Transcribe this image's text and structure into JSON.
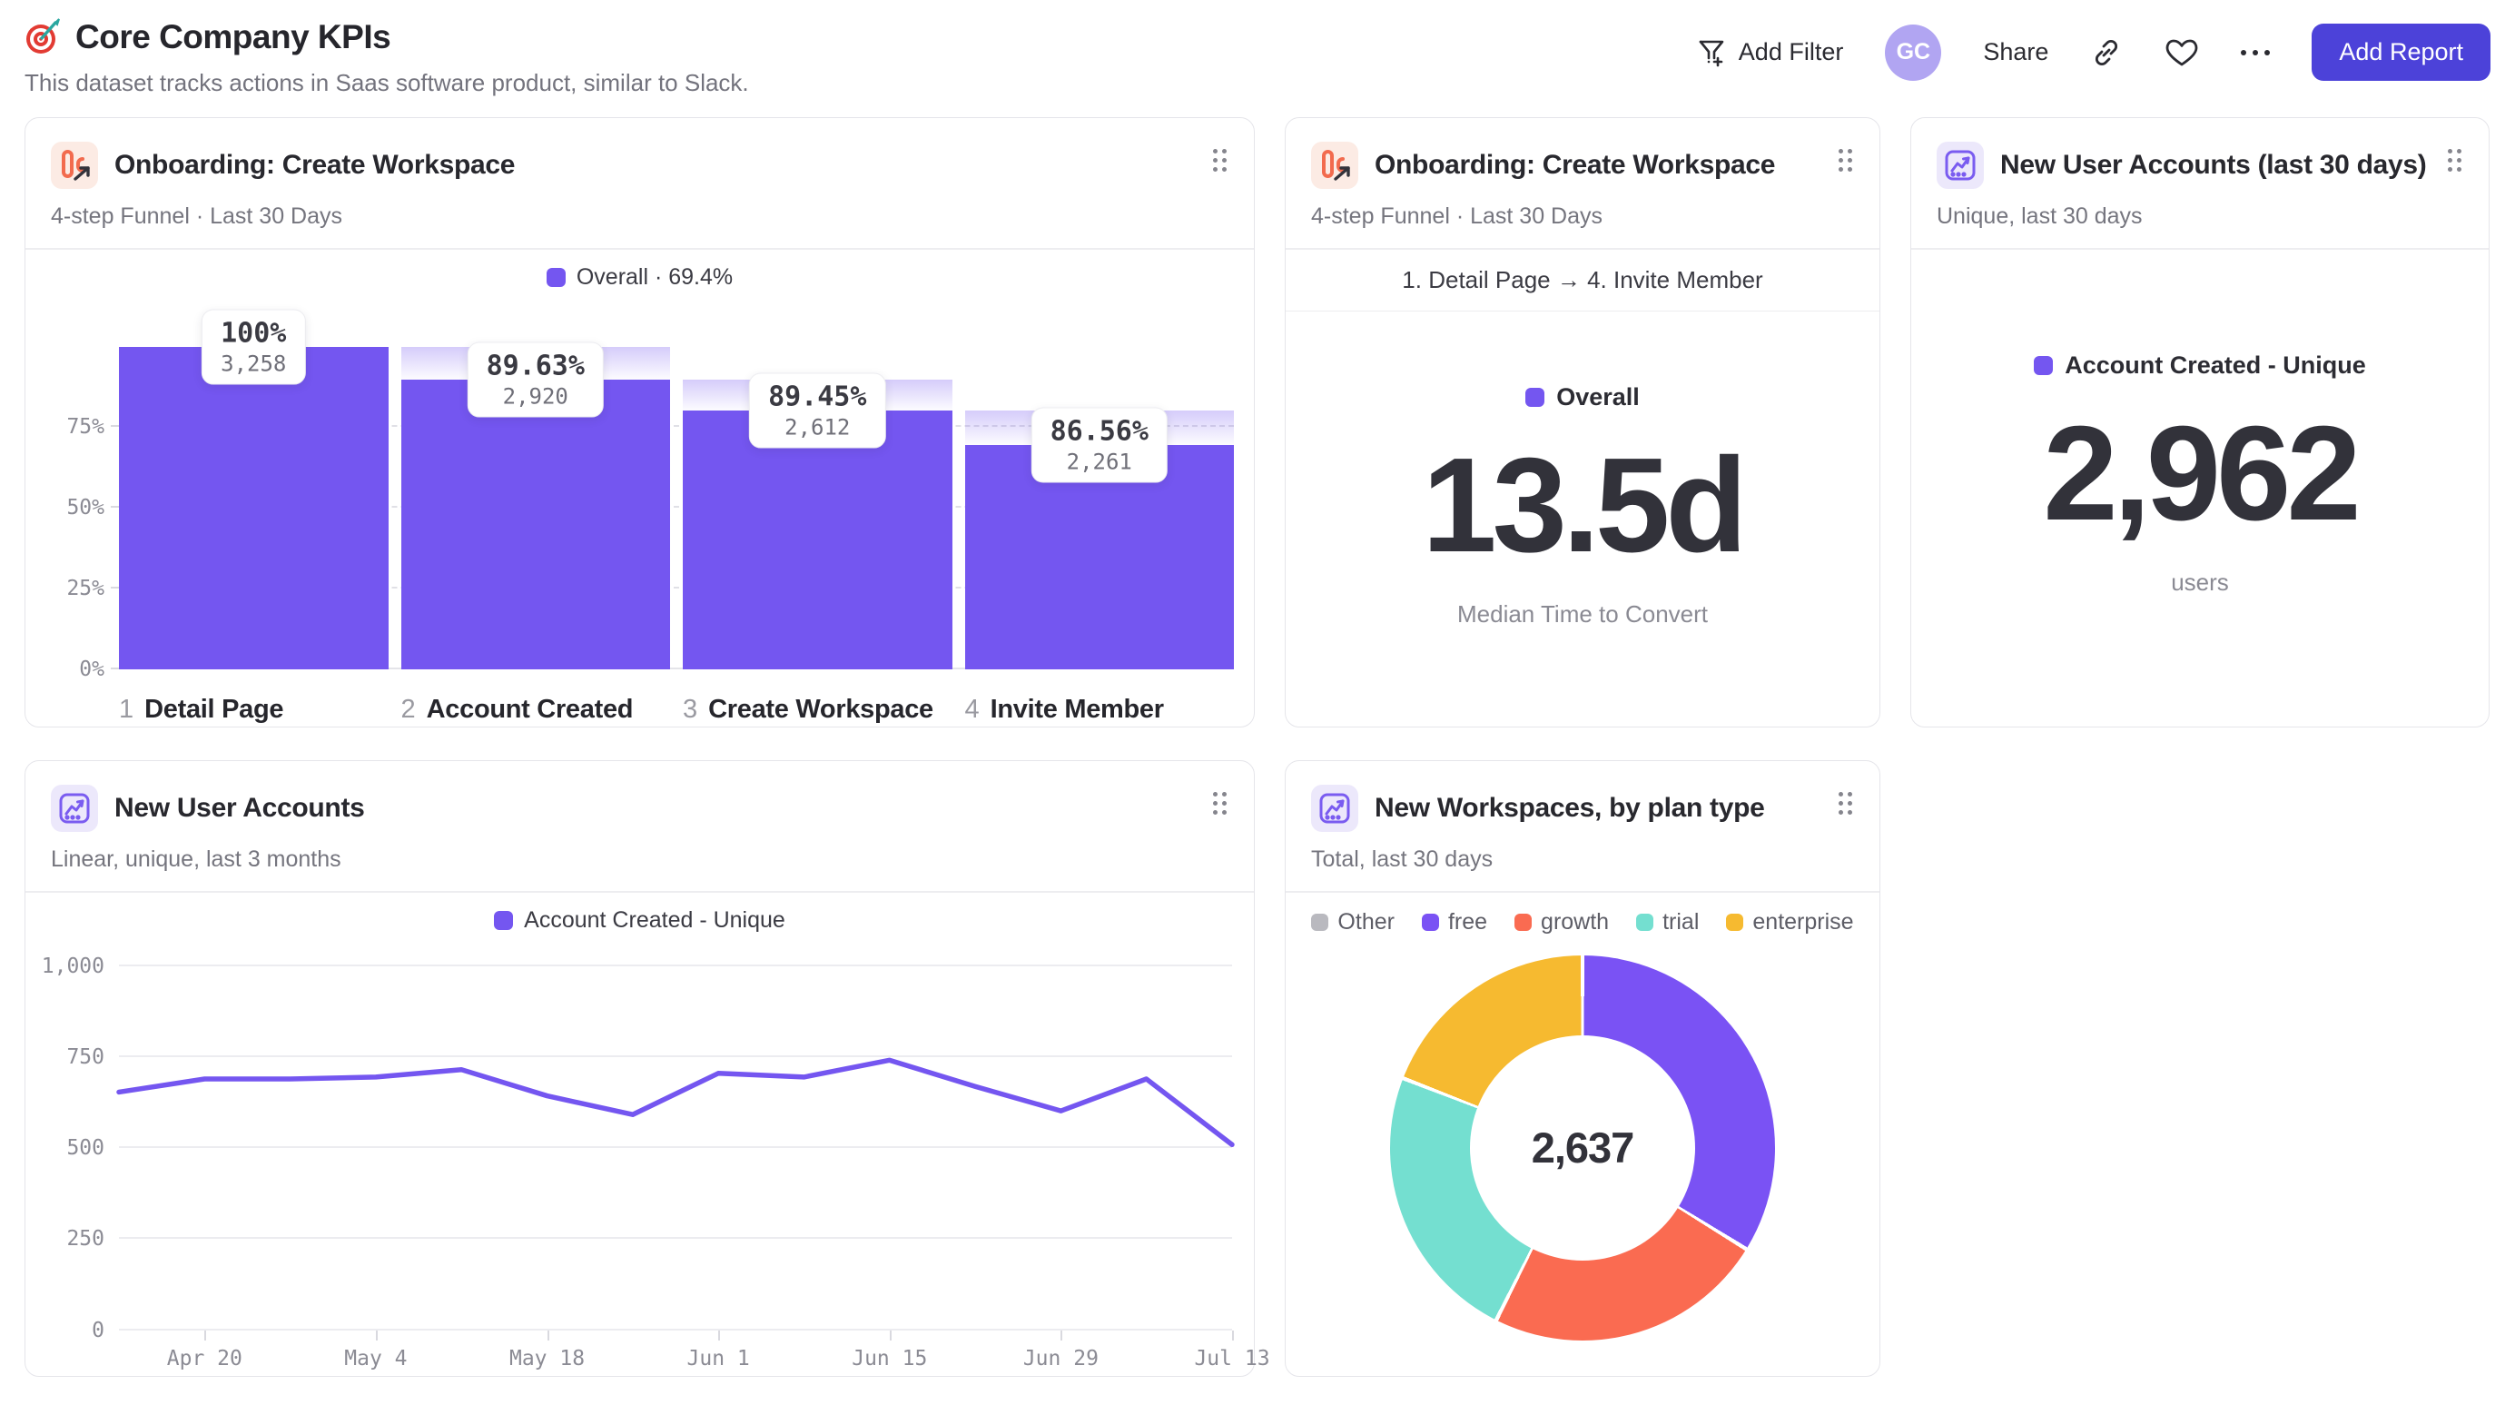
{
  "page": {
    "title": "Core Company KPIs",
    "subtitle": "This dataset tracks actions in Saas software product, similar to Slack."
  },
  "header": {
    "add_filter_label": "Add Filter",
    "avatar_initials": "GC",
    "share_label": "Share",
    "add_report_label": "Add Report"
  },
  "colors": {
    "accent_purple": "#7456f0",
    "button_indigo": "#4c42d9",
    "avatar_bg": "#b1a5f2"
  },
  "cards": {
    "funnel": {
      "title": "Onboarding: Create Workspace",
      "subtitle": "4-step Funnel · Last 30 Days",
      "legend": "Overall · 69.4%"
    },
    "time_to_convert": {
      "title": "Onboarding: Create Workspace",
      "subtitle": "4-step Funnel · Last 30 Days",
      "range": "1. Detail Page → 4. Invite Member",
      "legend": "Overall",
      "value": "13.5d",
      "caption": "Median Time to Convert"
    },
    "new_users_30d": {
      "title": "New User Accounts (last 30 days)",
      "subtitle": "Unique, last 30 days",
      "legend": "Account Created - Unique",
      "value": "2,962",
      "caption": "users"
    },
    "new_users_trend": {
      "title": "New User Accounts",
      "subtitle": "Linear, unique, last 3 months",
      "legend": "Account Created - Unique"
    },
    "workspaces": {
      "title": "New Workspaces, by plan type",
      "subtitle": "Total, last 30 days",
      "center_value": "2,637"
    }
  },
  "chart_data": [
    {
      "id": "funnel",
      "type": "bar",
      "title": "Onboarding: Create Workspace",
      "overall_conversion_label": "Overall · 69.4%",
      "bar_color": "#7456f0",
      "ylim": [
        0,
        100
      ],
      "yticks": [
        {
          "label": "0%",
          "pct": 0
        },
        {
          "label": "25%",
          "pct": 25
        },
        {
          "label": "50%",
          "pct": 50
        },
        {
          "label": "75%",
          "pct": 75
        }
      ],
      "steps": [
        {
          "index": "1",
          "label": "Detail Page",
          "pct_label": "100%",
          "count_label": "3,258",
          "value": 3258,
          "height_pct": 100,
          "cap_from_pct": null
        },
        {
          "index": "2",
          "label": "Account Created",
          "pct_label": "89.63%",
          "count_label": "2,920",
          "value": 2920,
          "height_pct": 89.63,
          "cap_from_pct": 100
        },
        {
          "index": "3",
          "label": "Create Workspace",
          "pct_label": "89.45%",
          "count_label": "2,612",
          "value": 2612,
          "height_pct": 80.17,
          "cap_from_pct": 89.63
        },
        {
          "index": "4",
          "label": "Invite Member",
          "pct_label": "86.56%",
          "count_label": "2,261",
          "value": 2261,
          "height_pct": 69.4,
          "cap_from_pct": 80.17
        }
      ]
    },
    {
      "id": "new_users_trend",
      "type": "line",
      "title": "New User Accounts",
      "series_name": "Account Created - Unique",
      "line_color": "#7456f0",
      "ylim": [
        0,
        1000
      ],
      "yticks": [
        {
          "label": "0",
          "v": 0
        },
        {
          "label": "250",
          "v": 250
        },
        {
          "label": "500",
          "v": 500
        },
        {
          "label": "750",
          "v": 750
        },
        {
          "label": "1,000",
          "v": 1000
        }
      ],
      "x_is_weekly": true,
      "values": [
        665,
        700,
        700,
        705,
        725,
        655,
        605,
        715,
        705,
        750,
        680,
        615,
        700,
        525
      ],
      "x_tick_labels": [
        {
          "label": "Apr 20",
          "idx": 1
        },
        {
          "label": "May 4",
          "idx": 3
        },
        {
          "label": "May 18",
          "idx": 5
        },
        {
          "label": "Jun 1",
          "idx": 7
        },
        {
          "label": "Jun 15",
          "idx": 9
        },
        {
          "label": "Jun 29",
          "idx": 11
        },
        {
          "label": "Jul 13",
          "idx": 13
        }
      ]
    },
    {
      "id": "workspaces_by_plan",
      "type": "pie",
      "title": "New Workspaces, by plan type",
      "total_label": "2,637",
      "total": 2637,
      "legend_position": "top",
      "slices": [
        {
          "label": "Other",
          "color": "#b9b9bf",
          "share_pct": 0
        },
        {
          "label": "free",
          "color": "#7a52f4",
          "share_pct": 33.8
        },
        {
          "label": "growth",
          "color": "#fa6b51",
          "share_pct": 23.6
        },
        {
          "label": "trial",
          "color": "#74dfd0",
          "share_pct": 23.5
        },
        {
          "label": "enterprise",
          "color": "#f6ba30",
          "share_pct": 19.1
        }
      ]
    }
  ]
}
